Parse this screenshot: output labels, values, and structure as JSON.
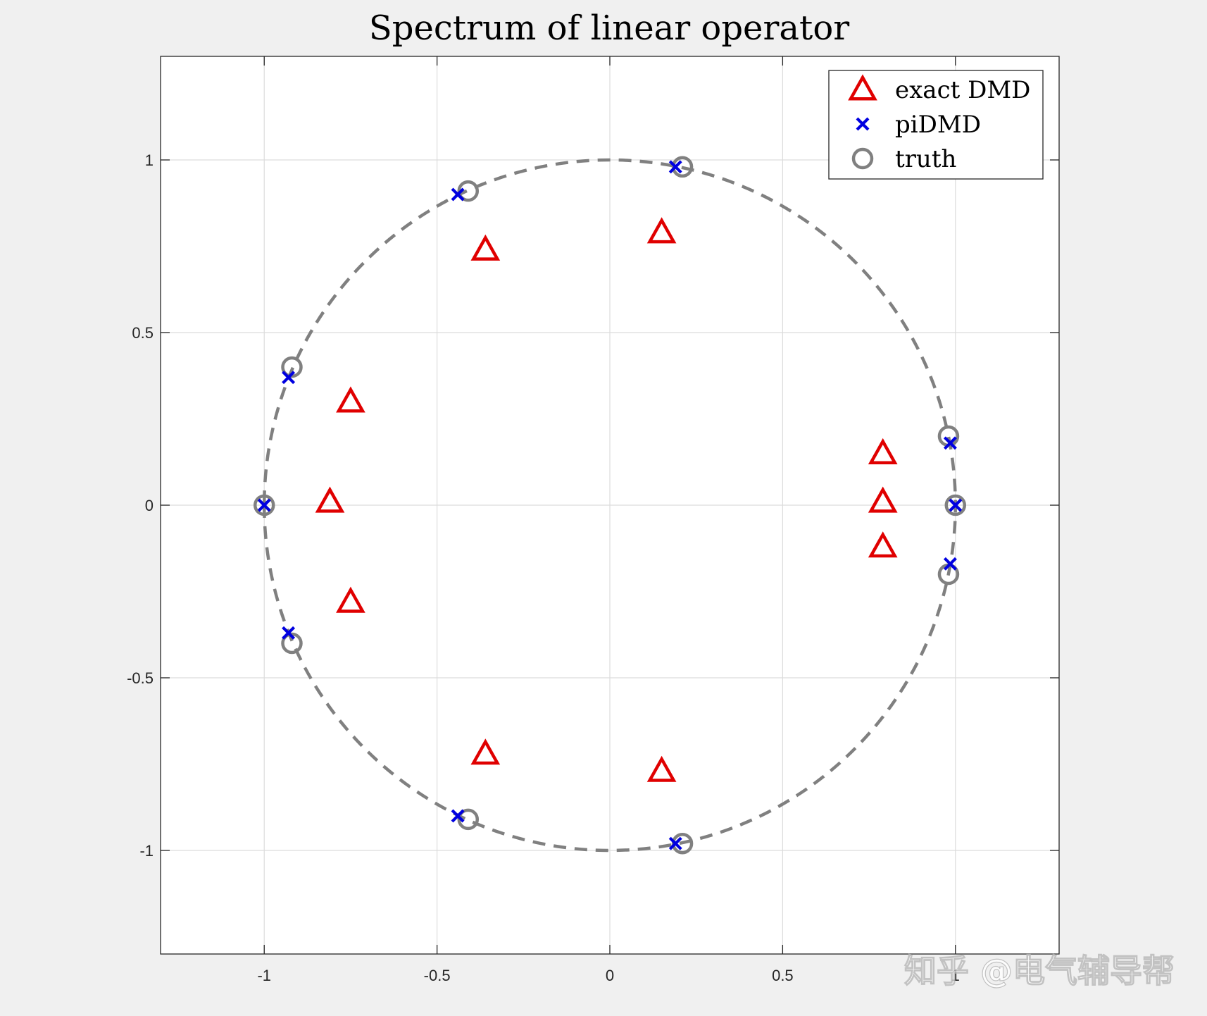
{
  "chart_data": {
    "type": "scatter",
    "title": "Spectrum of linear operator",
    "xlim": [
      -1.3,
      1.3
    ],
    "ylim": [
      -1.3,
      1.3
    ],
    "xticks": [
      -1,
      -0.5,
      0,
      0.5,
      1
    ],
    "yticks": [
      1,
      0.5,
      0,
      -0.5,
      -1
    ],
    "xtick_labels": [
      "-1",
      "-0.5",
      "0",
      "0.5",
      "1"
    ],
    "ytick_labels": [
      "1",
      "0.5",
      "0",
      "-0.5",
      "-1"
    ],
    "grid": true,
    "legend_position": "top-right",
    "reference_curve": {
      "type": "unit-circle",
      "style": "dashed",
      "color": "#808080"
    },
    "series": [
      {
        "name": "exact DMD",
        "marker": "triangle",
        "color": "#e00000",
        "points": [
          [
            0.15,
            0.79
          ],
          [
            -0.36,
            0.74
          ],
          [
            -0.75,
            0.3
          ],
          [
            -0.81,
            0.01
          ],
          [
            -0.75,
            -0.28
          ],
          [
            -0.36,
            -0.72
          ],
          [
            0.15,
            -0.77
          ],
          [
            0.79,
            0.15
          ],
          [
            0.79,
            0.01
          ],
          [
            0.79,
            -0.12
          ]
        ]
      },
      {
        "name": "piDMD",
        "marker": "x",
        "color": "#0000e0",
        "points": [
          [
            0.19,
            0.98
          ],
          [
            -0.44,
            0.9
          ],
          [
            -0.93,
            0.37
          ],
          [
            -1.0,
            0.0
          ],
          [
            -0.93,
            -0.37
          ],
          [
            -0.44,
            -0.9
          ],
          [
            0.19,
            -0.98
          ],
          [
            0.985,
            0.18
          ],
          [
            1.0,
            0.0
          ],
          [
            0.985,
            -0.17
          ]
        ]
      },
      {
        "name": "truth",
        "marker": "circle",
        "color": "#808080",
        "points": [
          [
            0.21,
            0.98
          ],
          [
            -0.41,
            0.91
          ],
          [
            -0.92,
            0.4
          ],
          [
            -1.0,
            0.0
          ],
          [
            -0.92,
            -0.4
          ],
          [
            -0.41,
            -0.91
          ],
          [
            0.21,
            -0.98
          ],
          [
            0.98,
            0.2
          ],
          [
            1.0,
            0.0
          ],
          [
            0.98,
            -0.2
          ]
        ]
      }
    ]
  },
  "watermark": "知乎 @电气辅导帮"
}
